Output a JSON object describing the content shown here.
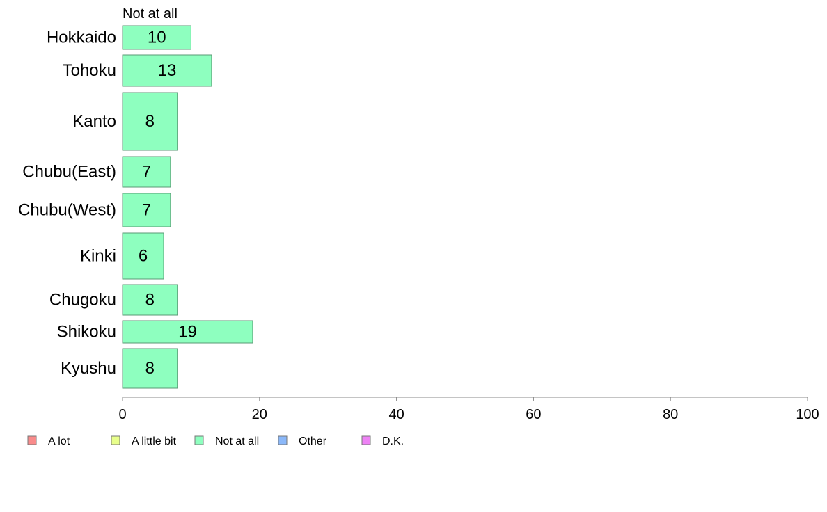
{
  "chart_data": {
    "type": "bar",
    "orientation": "horizontal",
    "stacked": true,
    "series_heading": "Not at all",
    "categories": [
      "Hokkaido",
      "Tohoku",
      "Kanto",
      "Chubu(East)",
      "Chubu(West)",
      "Kinki",
      "Chugoku",
      "Shikoku",
      "Kyushu"
    ],
    "series": [
      {
        "name": "Not at all",
        "color": "#8effbf",
        "values": [
          10,
          13,
          8,
          7,
          7,
          6,
          8,
          19,
          8
        ]
      }
    ],
    "xlim": [
      0,
      100
    ],
    "xticks": [
      "0",
      "20",
      "40",
      "60",
      "80",
      "100"
    ],
    "grid": false,
    "legend_position": "bottom-left",
    "legend": [
      {
        "label": "A lot",
        "color": "#f98b8b"
      },
      {
        "label": "A little bit",
        "color": "#e8ff8b"
      },
      {
        "label": "Not at all",
        "color": "#8effbf"
      },
      {
        "label": "Other",
        "color": "#8bb8f9"
      },
      {
        "label": "D.K.",
        "color": "#ee82f5"
      }
    ]
  }
}
